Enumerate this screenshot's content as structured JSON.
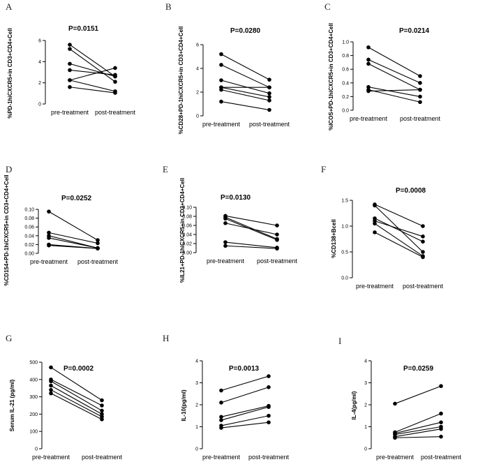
{
  "chart_data": [
    {
      "panel": "A",
      "type": "line",
      "title": "P=0.0151",
      "ylabel": "%PD-1hiCXCR5+in CD3+CD4+Cell",
      "categories": [
        "pre-treatment",
        "post-treatment"
      ],
      "ylim": [
        0,
        6
      ],
      "yticks": [
        0,
        2,
        4,
        6
      ],
      "ytick_labels": [
        "0",
        "2",
        "4",
        "6"
      ],
      "pairs": [
        [
          5.6,
          2.6
        ],
        [
          5.2,
          2.1
        ],
        [
          3.8,
          2.6
        ],
        [
          3.2,
          2.75
        ],
        [
          2.25,
          1.2
        ],
        [
          1.6,
          1.05
        ],
        [
          2.25,
          3.4
        ]
      ]
    },
    {
      "panel": "B",
      "type": "line",
      "title": "P=0.0280",
      "ylabel": "%CD28+PD-1hiCXCR5+in CD3+CD4+Cell",
      "categories": [
        "pre-treatment",
        "post-treatment"
      ],
      "ylim": [
        0,
        6
      ],
      "yticks": [
        0,
        2,
        4,
        6
      ],
      "ytick_labels": [
        "0",
        "2",
        "4",
        "6"
      ],
      "pairs": [
        [
          5.2,
          3.05
        ],
        [
          4.3,
          2.4
        ],
        [
          3.0,
          1.9
        ],
        [
          2.4,
          2.4
        ],
        [
          2.2,
          1.3
        ],
        [
          1.2,
          0.5
        ],
        [
          2.4,
          1.6
        ]
      ]
    },
    {
      "panel": "C",
      "type": "line",
      "title": "P=0.0214",
      "ylabel": "%ICOS+PD-1hiCXCR5+in CD3+CD4+Cell",
      "categories": [
        "pre-treatment",
        "post-treatment"
      ],
      "ylim": [
        0,
        1.0
      ],
      "yticks": [
        0,
        0.2,
        0.4,
        0.6,
        0.8,
        1.0
      ],
      "ytick_labels": [
        "0.0",
        "0.2",
        "0.4",
        "0.6",
        "0.8",
        "1.0"
      ],
      "pairs": [
        [
          0.92,
          0.5
        ],
        [
          0.74,
          0.4
        ],
        [
          0.68,
          0.3
        ],
        [
          0.34,
          0.2
        ],
        [
          0.3,
          0.12
        ],
        [
          0.28,
          0.3
        ]
      ]
    },
    {
      "panel": "D",
      "type": "line",
      "title": "P=0.0252",
      "ylabel": "%CD154+PD-1hiCXCR5+in CD3+CD4+Cell",
      "categories": [
        "pre-treatment",
        "post-treatment"
      ],
      "ylim": [
        0,
        0.1
      ],
      "yticks": [
        0,
        0.02,
        0.04,
        0.06,
        0.08,
        0.1
      ],
      "ytick_labels": [
        "0.00",
        "0.02",
        "0.04",
        "0.06",
        "0.08",
        "0.10"
      ],
      "pairs": [
        [
          0.095,
          0.03
        ],
        [
          0.047,
          0.023
        ],
        [
          0.04,
          0.012
        ],
        [
          0.035,
          0.012
        ],
        [
          0.02,
          0.011
        ],
        [
          0.018,
          0.011
        ]
      ]
    },
    {
      "panel": "E",
      "type": "line",
      "title": "P=0.0130",
      "ylabel": "%IL21+PD-1hiCXCR5+in CD3+CD4+Cell",
      "categories": [
        "pre-treatment",
        "post-treatment"
      ],
      "ylim": [
        0,
        0.1
      ],
      "yticks": [
        0,
        0.02,
        0.04,
        0.06,
        0.08,
        0.1
      ],
      "ytick_labels": [
        "0.00",
        "0.02",
        "0.04",
        "0.06",
        "0.08",
        "0.10"
      ],
      "pairs": [
        [
          0.081,
          0.06
        ],
        [
          0.078,
          0.03
        ],
        [
          0.075,
          0.028
        ],
        [
          0.065,
          0.04
        ],
        [
          0.023,
          0.011
        ],
        [
          0.015,
          0.009
        ]
      ]
    },
    {
      "panel": "F",
      "type": "line",
      "title": "P=0.0008",
      "ylabel": "%CD138+Bcell",
      "categories": [
        "pre-treatment",
        "post-treatment"
      ],
      "ylim": [
        0,
        1.5
      ],
      "yticks": [
        0,
        0.5,
        1.0,
        1.5
      ],
      "ytick_labels": [
        "0.0",
        "0.5",
        "1.0",
        "1.5"
      ],
      "pairs": [
        [
          1.42,
          1.0
        ],
        [
          1.4,
          0.5
        ],
        [
          1.15,
          0.7
        ],
        [
          1.1,
          0.8
        ],
        [
          1.05,
          0.42
        ],
        [
          0.88,
          0.4
        ]
      ]
    },
    {
      "panel": "G",
      "type": "line",
      "title": "P=0.0002",
      "ylabel": "Serum IL-21 (pg/ml)",
      "categories": [
        "pre-treatment",
        "post-treatment"
      ],
      "ylim": [
        0,
        500
      ],
      "yticks": [
        0,
        100,
        200,
        300,
        400,
        500
      ],
      "ytick_labels": [
        "0",
        "100",
        "200",
        "300",
        "400",
        "500"
      ],
      "pairs": [
        [
          470,
          280
        ],
        [
          400,
          250
        ],
        [
          390,
          220
        ],
        [
          365,
          200
        ],
        [
          340,
          185
        ],
        [
          320,
          170
        ]
      ]
    },
    {
      "panel": "H",
      "type": "line",
      "title": "P=0.0013",
      "ylabel": "IL-10(pg/ml)",
      "categories": [
        "pre-treatment",
        "post-treatment"
      ],
      "ylim": [
        0,
        4
      ],
      "yticks": [
        0,
        1,
        2,
        3,
        4
      ],
      "ytick_labels": [
        "0",
        "1",
        "2",
        "3",
        "4"
      ],
      "pairs": [
        [
          2.65,
          3.3
        ],
        [
          2.1,
          2.8
        ],
        [
          1.45,
          1.95
        ],
        [
          1.3,
          1.9
        ],
        [
          1.05,
          1.5
        ],
        [
          0.95,
          1.2
        ]
      ]
    },
    {
      "panel": "I",
      "type": "line",
      "title": "P=0.0259",
      "ylabel": "IL-4(pg/ml)",
      "categories": [
        "pre-treatment",
        "post-treatment"
      ],
      "ylim": [
        0,
        4
      ],
      "yticks": [
        0,
        1,
        2,
        3,
        4
      ],
      "ytick_labels": [
        "0",
        "1",
        "2",
        "3",
        "4"
      ],
      "pairs": [
        [
          2.05,
          2.85
        ],
        [
          0.75,
          1.6
        ],
        [
          0.7,
          1.2
        ],
        [
          0.65,
          1.0
        ],
        [
          0.55,
          0.9
        ],
        [
          0.5,
          0.55
        ]
      ]
    }
  ]
}
